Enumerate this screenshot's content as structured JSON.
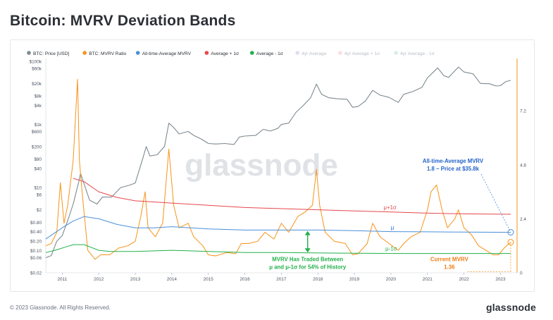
{
  "page": {
    "title": "Bitcoin: MVRV Deviation Bands",
    "copyright": "© 2023 Glassnode. All Rights Reserved.",
    "brand": "glassnode",
    "watermark": "glassnode"
  },
  "chart_data": {
    "type": "line",
    "legend_placement": "top",
    "legend": [
      {
        "label": "BTC: Price [USD]",
        "color": "#7d8a90",
        "active": true
      },
      {
        "label": "BTC: MVRV Ratio",
        "color": "#f7931a",
        "active": true
      },
      {
        "label": "All-time-Average MVRV",
        "color": "#4a90d9",
        "active": true
      },
      {
        "label": "Average + 1σ",
        "color": "#e5484d",
        "active": true
      },
      {
        "label": "Average - 1σ",
        "color": "#22b04b",
        "active": true
      },
      {
        "label": "4yr Average",
        "color": "#b9b3e8",
        "active": false
      },
      {
        "label": "4yr Average + 1σ",
        "color": "#f2b8b8",
        "active": false
      },
      {
        "label": "4yr Average - 1σ",
        "color": "#a9d8cc",
        "active": false
      }
    ],
    "x_axis": {
      "ticks": [
        "2011",
        "2012",
        "2013",
        "2014",
        "2015",
        "2016",
        "2017",
        "2018",
        "2019",
        "2020",
        "2021",
        "2022",
        "2023"
      ],
      "range": [
        2010.55,
        2023.3
      ]
    },
    "y_left": {
      "scale": "log",
      "ticks": [
        "$0.02",
        "$0.06",
        "$0.10",
        "$0.20",
        "$0.40",
        "$0.80",
        "$2",
        "$6",
        "$10",
        "$40",
        "$80",
        "$200",
        "$600",
        "$1k",
        "$4k",
        "$8k",
        "$20k",
        "$60k",
        "$100k"
      ]
    },
    "y_right": {
      "scale": "linear",
      "ticks": [
        "0",
        "2.4",
        "4.8",
        "7.2"
      ],
      "range": [
        0,
        9.4
      ]
    },
    "series": [
      {
        "name": "BTC: Price [USD]",
        "color": "#7d8a90",
        "axis": "left",
        "points": [
          [
            2010.55,
            0.06
          ],
          [
            2010.7,
            0.07
          ],
          [
            2010.85,
            0.2
          ],
          [
            2011.0,
            0.3
          ],
          [
            2011.15,
            0.9
          ],
          [
            2011.3,
            3
          ],
          [
            2011.45,
            15
          ],
          [
            2011.5,
            28
          ],
          [
            2011.6,
            13
          ],
          [
            2011.75,
            4
          ],
          [
            2011.95,
            3
          ],
          [
            2012.1,
            5
          ],
          [
            2012.35,
            5
          ],
          [
            2012.6,
            10
          ],
          [
            2012.85,
            12
          ],
          [
            2013.0,
            14
          ],
          [
            2013.2,
            80
          ],
          [
            2013.3,
            200
          ],
          [
            2013.4,
            100
          ],
          [
            2013.6,
            110
          ],
          [
            2013.8,
            200
          ],
          [
            2013.92,
            1100
          ],
          [
            2014.05,
            800
          ],
          [
            2014.2,
            500
          ],
          [
            2014.45,
            600
          ],
          [
            2014.6,
            450
          ],
          [
            2014.8,
            350
          ],
          [
            2015.0,
            250
          ],
          [
            2015.2,
            240
          ],
          [
            2015.45,
            250
          ],
          [
            2015.7,
            230
          ],
          [
            2015.85,
            400
          ],
          [
            2016.0,
            430
          ],
          [
            2016.3,
            450
          ],
          [
            2016.5,
            700
          ],
          [
            2016.7,
            620
          ],
          [
            2016.9,
            750
          ],
          [
            2017.0,
            1000
          ],
          [
            2017.2,
            1100
          ],
          [
            2017.4,
            2400
          ],
          [
            2017.6,
            4000
          ],
          [
            2017.8,
            7000
          ],
          [
            2017.96,
            19000
          ],
          [
            2018.1,
            9000
          ],
          [
            2018.3,
            7000
          ],
          [
            2018.55,
            6500
          ],
          [
            2018.8,
            6300
          ],
          [
            2018.95,
            3500
          ],
          [
            2019.1,
            3700
          ],
          [
            2019.3,
            5500
          ],
          [
            2019.5,
            12000
          ],
          [
            2019.7,
            8500
          ],
          [
            2019.95,
            7200
          ],
          [
            2020.2,
            5000
          ],
          [
            2020.35,
            9000
          ],
          [
            2020.6,
            11000
          ],
          [
            2020.85,
            15000
          ],
          [
            2021.0,
            30000
          ],
          [
            2021.28,
            62000
          ],
          [
            2021.45,
            35000
          ],
          [
            2021.58,
            31000
          ],
          [
            2021.85,
            66000
          ],
          [
            2022.0,
            46000
          ],
          [
            2022.25,
            40000
          ],
          [
            2022.45,
            20000
          ],
          [
            2022.7,
            19500
          ],
          [
            2022.88,
            16500
          ],
          [
            2023.0,
            17000
          ],
          [
            2023.15,
            23000
          ],
          [
            2023.28,
            25000
          ]
        ]
      },
      {
        "name": "BTC: MVRV Ratio",
        "color": "#f7931a",
        "axis": "right",
        "points": [
          [
            2010.55,
            1.2
          ],
          [
            2010.7,
            1.3
          ],
          [
            2010.85,
            1.8
          ],
          [
            2010.95,
            4.0
          ],
          [
            2011.05,
            2.2
          ],
          [
            2011.15,
            3.0
          ],
          [
            2011.3,
            5.0
          ],
          [
            2011.42,
            8.6
          ],
          [
            2011.47,
            5.0
          ],
          [
            2011.55,
            3.5
          ],
          [
            2011.7,
            1.0
          ],
          [
            2011.9,
            0.6
          ],
          [
            2012.05,
            0.8
          ],
          [
            2012.3,
            0.8
          ],
          [
            2012.55,
            1.1
          ],
          [
            2012.8,
            1.2
          ],
          [
            2013.0,
            1.4
          ],
          [
            2013.15,
            2.5
          ],
          [
            2013.27,
            3.6
          ],
          [
            2013.35,
            2.0
          ],
          [
            2013.55,
            1.6
          ],
          [
            2013.75,
            2.2
          ],
          [
            2013.92,
            5.5
          ],
          [
            2014.05,
            3.0
          ],
          [
            2014.2,
            2.0
          ],
          [
            2014.45,
            2.2
          ],
          [
            2014.6,
            1.6
          ],
          [
            2014.85,
            1.2
          ],
          [
            2015.0,
            0.8
          ],
          [
            2015.2,
            0.75
          ],
          [
            2015.5,
            0.9
          ],
          [
            2015.75,
            0.85
          ],
          [
            2015.9,
            1.3
          ],
          [
            2016.1,
            1.3
          ],
          [
            2016.35,
            1.4
          ],
          [
            2016.55,
            1.8
          ],
          [
            2016.8,
            1.5
          ],
          [
            2017.0,
            2.2
          ],
          [
            2017.2,
            1.8
          ],
          [
            2017.45,
            2.5
          ],
          [
            2017.65,
            2.7
          ],
          [
            2017.85,
            3.0
          ],
          [
            2017.96,
            4.6
          ],
          [
            2018.05,
            3.0
          ],
          [
            2018.2,
            1.8
          ],
          [
            2018.45,
            1.4
          ],
          [
            2018.75,
            1.3
          ],
          [
            2018.95,
            0.8
          ],
          [
            2019.1,
            0.85
          ],
          [
            2019.35,
            1.3
          ],
          [
            2019.5,
            2.2
          ],
          [
            2019.7,
            1.6
          ],
          [
            2019.95,
            1.3
          ],
          [
            2020.2,
            1.0
          ],
          [
            2020.35,
            1.3
          ],
          [
            2020.55,
            1.6
          ],
          [
            2020.8,
            1.8
          ],
          [
            2021.0,
            2.8
          ],
          [
            2021.1,
            3.6
          ],
          [
            2021.25,
            3.9
          ],
          [
            2021.4,
            2.8
          ],
          [
            2021.55,
            2.0
          ],
          [
            2021.75,
            2.4
          ],
          [
            2021.85,
            2.8
          ],
          [
            2022.0,
            2.0
          ],
          [
            2022.2,
            1.7
          ],
          [
            2022.4,
            1.2
          ],
          [
            2022.6,
            1.0
          ],
          [
            2022.8,
            0.8
          ],
          [
            2022.95,
            0.8
          ],
          [
            2023.1,
            1.1
          ],
          [
            2023.28,
            1.36
          ]
        ]
      },
      {
        "name": "All-time-Average MVRV",
        "color": "#4a90d9",
        "axis": "right",
        "points": [
          [
            2010.55,
            1.5
          ],
          [
            2011.0,
            2.0
          ],
          [
            2011.3,
            2.3
          ],
          [
            2011.6,
            2.5
          ],
          [
            2012.0,
            2.4
          ],
          [
            2012.5,
            2.15
          ],
          [
            2013.0,
            2.0
          ],
          [
            2013.5,
            2.0
          ],
          [
            2014.0,
            2.05
          ],
          [
            2014.5,
            2.0
          ],
          [
            2015.0,
            1.95
          ],
          [
            2016.0,
            1.9
          ],
          [
            2017.0,
            1.9
          ],
          [
            2018.0,
            1.9
          ],
          [
            2019.0,
            1.87
          ],
          [
            2020.0,
            1.83
          ],
          [
            2021.0,
            1.82
          ],
          [
            2022.0,
            1.81
          ],
          [
            2023.28,
            1.8
          ]
        ]
      },
      {
        "name": "Average + 1σ",
        "color": "#e5484d",
        "axis": "right",
        "points": [
          [
            2011.3,
            4.2
          ],
          [
            2011.6,
            4.05
          ],
          [
            2012.0,
            3.6
          ],
          [
            2012.5,
            3.35
          ],
          [
            2013.0,
            3.2
          ],
          [
            2013.5,
            3.15
          ],
          [
            2014.0,
            3.1
          ],
          [
            2015.0,
            3.0
          ],
          [
            2016.0,
            2.9
          ],
          [
            2017.0,
            2.85
          ],
          [
            2018.0,
            2.8
          ],
          [
            2019.0,
            2.75
          ],
          [
            2020.0,
            2.7
          ],
          [
            2021.0,
            2.65
          ],
          [
            2022.0,
            2.62
          ],
          [
            2023.28,
            2.6
          ]
        ]
      },
      {
        "name": "Average - 1σ",
        "color": "#22b04b",
        "axis": "right",
        "points": [
          [
            2010.55,
            0.9
          ],
          [
            2010.8,
            1.0
          ],
          [
            2011.1,
            1.15
          ],
          [
            2011.3,
            1.25
          ],
          [
            2011.6,
            1.25
          ],
          [
            2012.0,
            1.0
          ],
          [
            2012.3,
            0.95
          ],
          [
            2013.0,
            0.95
          ],
          [
            2014.0,
            1.0
          ],
          [
            2015.0,
            0.95
          ],
          [
            2016.0,
            0.9
          ],
          [
            2017.0,
            0.9
          ],
          [
            2018.0,
            0.88
          ],
          [
            2019.0,
            0.87
          ],
          [
            2020.0,
            0.86
          ],
          [
            2021.0,
            0.86
          ],
          [
            2022.0,
            0.86
          ],
          [
            2023.28,
            0.86
          ]
        ]
      }
    ],
    "annotations": {
      "atam_title": "All-time-Average MVRV",
      "atam_sub": "1.8 ~ Price at $35.8k",
      "upper_band": "μ+1σ",
      "mean_band": "μ",
      "lower_band": "μ-1σ",
      "traded_line1": "MVRV Has Traded Between",
      "traded_line2": "μ and μ-1σ for 54% of History",
      "current_line1": "Current MVRV",
      "current_line2": "1.36"
    }
  }
}
